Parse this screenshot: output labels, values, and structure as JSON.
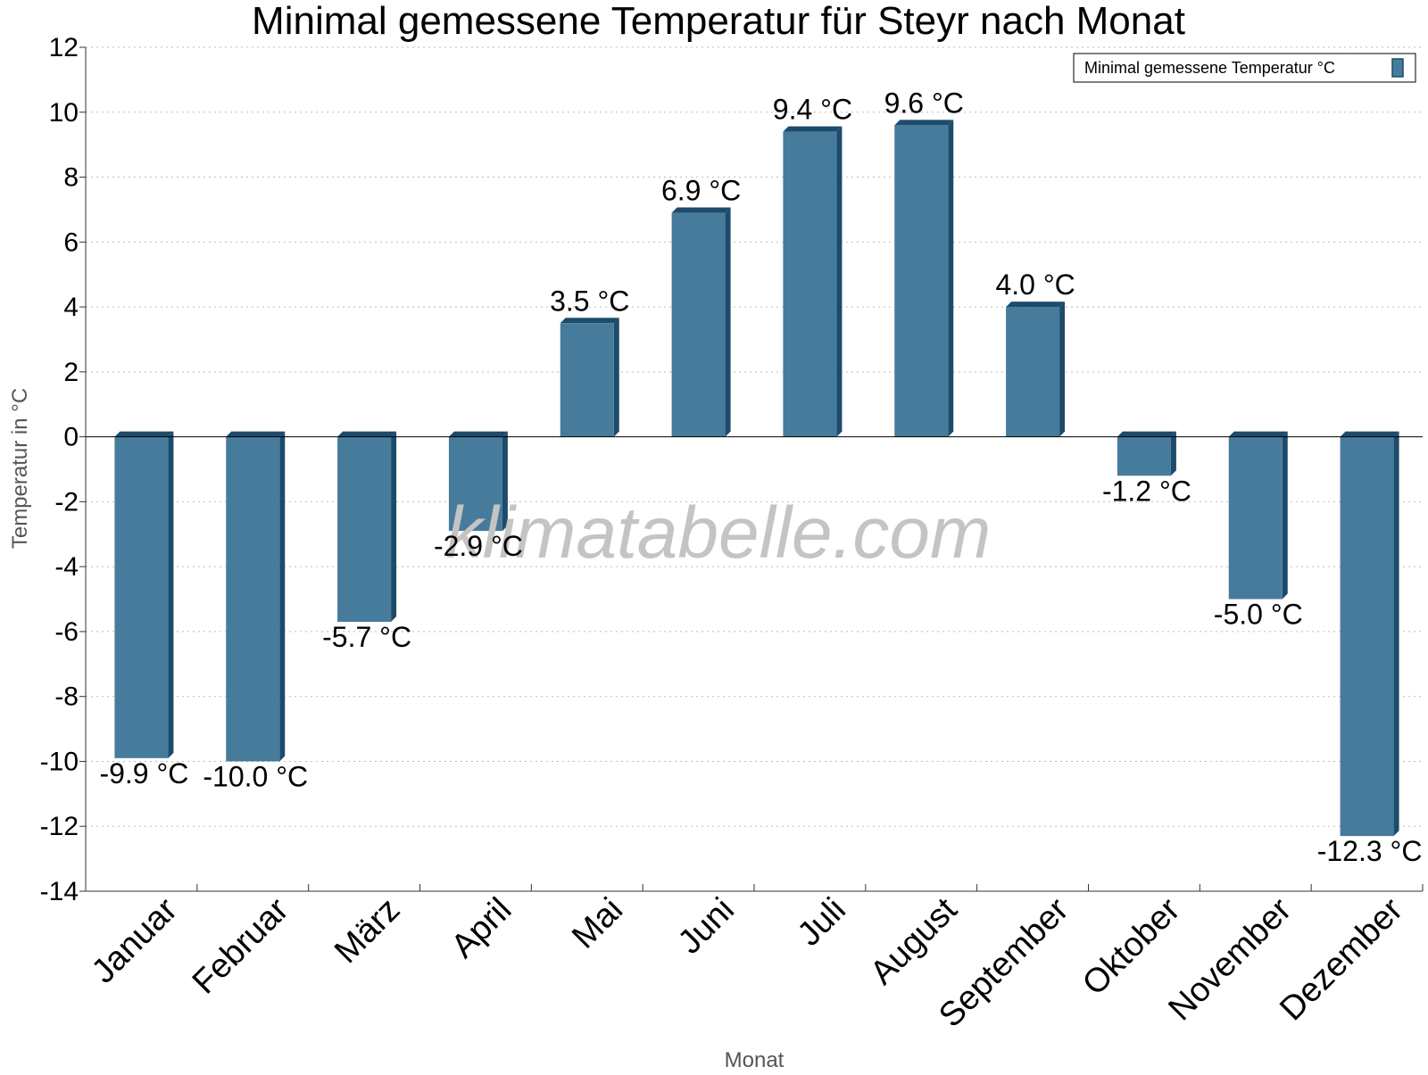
{
  "colors": {
    "bar_front": "#477b9c",
    "bar_side": "#1d4b6b",
    "grid": "#bbbbbb",
    "axis": "#333333",
    "watermark": "#c4c4c4",
    "axis_title": "#555555"
  },
  "watermark": "klimatabelle.com",
  "chart_data": {
    "type": "bar",
    "title": "Minimal gemessene Temperatur für Steyr nach Monat",
    "xlabel": "Monat",
    "ylabel": "Temperatur in °C",
    "ylim": [
      -14,
      12
    ],
    "yticks": [
      12,
      10,
      8,
      6,
      4,
      2,
      0,
      -2,
      -4,
      -6,
      -8,
      -10,
      -12,
      -14
    ],
    "grid": true,
    "legend_position": "top-right",
    "categories": [
      "Januar",
      "Februar",
      "März",
      "April",
      "Mai",
      "Juni",
      "Juli",
      "August",
      "September",
      "Oktober",
      "November",
      "Dezember"
    ],
    "series": [
      {
        "name": "Minimal gemessene Temperatur °C",
        "values": [
          -9.9,
          -10.0,
          -5.7,
          -2.9,
          3.5,
          6.9,
          9.4,
          9.6,
          4.0,
          -1.2,
          -5.0,
          -12.3
        ],
        "labels": [
          "-9.9 °C",
          "-10.0 °C",
          "-5.7 °C",
          "-2.9 °C",
          "3.5 °C",
          "6.9 °C",
          "9.4 °C",
          "9.6 °C",
          "4.0 °C",
          "-1.2 °C",
          "-5.0 °C",
          "-12.3 °C"
        ]
      }
    ]
  }
}
